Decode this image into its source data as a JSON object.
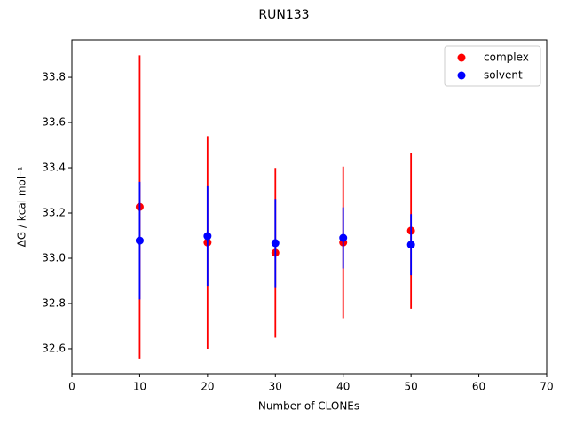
{
  "chart_data": {
    "type": "scatter",
    "title": "RUN133",
    "x_label": "Number of CLONEs",
    "y_label": "ΔG / kcal mol⁻¹",
    "xlim": [
      0,
      70
    ],
    "xticks": [
      0,
      10,
      20,
      30,
      40,
      50,
      60,
      70
    ],
    "ylim": [
      32.49,
      33.965
    ],
    "yticks": [
      {
        "value": 32.6,
        "label": "32.6"
      },
      {
        "value": 32.8,
        "label": "32.8"
      },
      {
        "value": 33.0,
        "label": "33.0"
      },
      {
        "value": 33.2,
        "label": "33.2"
      },
      {
        "value": 33.4,
        "label": "33.4"
      },
      {
        "value": 33.6,
        "label": "33.6"
      },
      {
        "value": 33.8,
        "label": "33.8"
      }
    ],
    "legend": "upper right",
    "grid": false,
    "series": [
      {
        "name": "complex",
        "color": "#ff0000",
        "x": [
          10,
          20,
          30,
          40,
          50
        ],
        "values": [
          33.227,
          33.07,
          33.024,
          33.07,
          33.122
        ],
        "errors": [
          0.67,
          0.47,
          0.375,
          0.335,
          0.345
        ]
      },
      {
        "name": "solvent",
        "color": "#0000ff",
        "x": [
          10,
          20,
          30,
          40,
          50
        ],
        "values": [
          33.078,
          33.098,
          33.067,
          33.09,
          33.06
        ],
        "errors": [
          0.26,
          0.22,
          0.195,
          0.135,
          0.135
        ]
      }
    ]
  }
}
